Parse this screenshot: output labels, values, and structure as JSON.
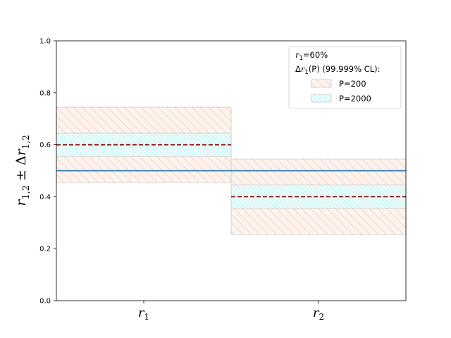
{
  "chart_data": {
    "type": "bar",
    "categories": [
      "r1",
      "r2"
    ],
    "category_labels": [
      {
        "base": "r",
        "sub": "1"
      },
      {
        "base": "r",
        "sub": "2"
      }
    ],
    "ylabel": {
      "base": "r",
      "sub": "1,2",
      "mid": " ± Δ",
      "base2": "r",
      "sub2": "1,2"
    },
    "ylim": [
      0,
      1
    ],
    "yticks": [
      "0.0",
      "0.2",
      "0.4",
      "0.6",
      "0.8",
      "1.0"
    ],
    "true_values": [
      0.6,
      0.4
    ],
    "measured_values": [
      0.5,
      0.5
    ],
    "bands": [
      {
        "name": "P=200",
        "color": "#f4a582",
        "lower": [
          0.455,
          0.255
        ],
        "upper": [
          0.745,
          0.545
        ]
      },
      {
        "name": "P=2000",
        "color": "#5bd4d4",
        "lower": [
          0.555,
          0.355
        ],
        "upper": [
          0.645,
          0.445
        ]
      }
    ],
    "true_line_color": "#8b0000",
    "measured_line_color": "#1f77b4",
    "legend": {
      "placement": "top-right",
      "line1": {
        "base": "r",
        "sub": "1",
        "text": "=60%"
      },
      "line2": {
        "pre": "Δ",
        "base": "r",
        "sub": "1",
        "text": "(P) (99.999% CL):"
      }
    }
  }
}
